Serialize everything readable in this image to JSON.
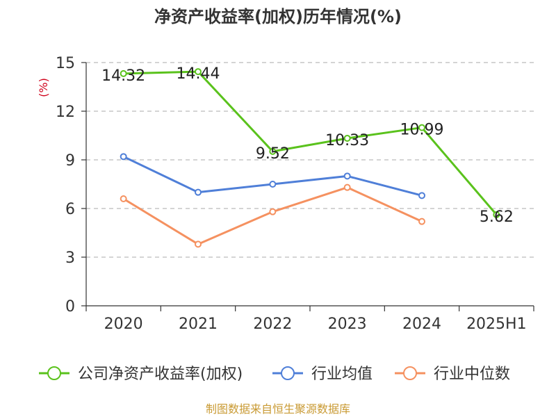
{
  "chart_data": {
    "type": "line",
    "title": "净资产收益率(加权)历年情况(%)",
    "ylabel": "(%)",
    "categories": [
      "2020",
      "2021",
      "2022",
      "2023",
      "2024",
      "2025H1"
    ],
    "yticks": [
      "0",
      "3",
      "6",
      "9",
      "12",
      "15"
    ],
    "ylim": [
      0,
      15
    ],
    "grid": true,
    "legend_position": "bottom",
    "series": [
      {
        "name": "公司净资产收益率(加权)",
        "color": "#5ac21c",
        "values": [
          14.32,
          14.44,
          9.52,
          10.33,
          10.99,
          5.62
        ],
        "labels": [
          "14.32",
          "14.44",
          "9.52",
          "10.33",
          "10.99",
          "5.62"
        ]
      },
      {
        "name": "行业均值",
        "color": "#4f7fd8",
        "values": [
          9.2,
          7.0,
          7.5,
          8.0,
          6.8,
          null
        ]
      },
      {
        "name": "行业中位数",
        "color": "#f59160",
        "values": [
          6.6,
          3.8,
          5.8,
          7.3,
          5.2,
          null
        ]
      }
    ]
  },
  "source_note": "制图数据来自恒生聚源数据库",
  "colors": {
    "ylabel": "#d0021b",
    "source": "#c99a33",
    "grid": "#bbbbbb",
    "axis": "#333333"
  }
}
